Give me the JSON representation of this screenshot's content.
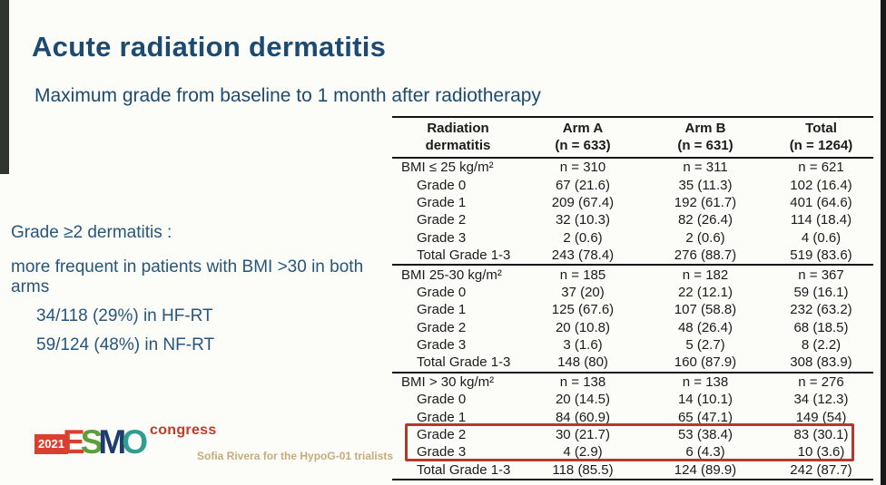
{
  "slide": {
    "title": "Acute radiation dermatitis",
    "subtitle": "Maximum grade from baseline to 1 month after radiotherapy"
  },
  "annotation": {
    "lines": [
      "Grade ≥2 dermatitis :",
      "more frequent in patients with BMI >30 in both arms",
      "34/118 (29%) in HF-RT",
      "59/124 (48%) in NF-RT"
    ]
  },
  "table": {
    "header": {
      "col0": {
        "line1": "Radiation",
        "line2": "dermatitis"
      },
      "col1": {
        "line1": "Arm A",
        "line2": "(n = 633)"
      },
      "col2": {
        "line1": "Arm B",
        "line2": "(n = 631)"
      },
      "col3": {
        "line1": "Total",
        "line2": "(n = 1264)"
      }
    },
    "sections": [
      {
        "label": "BMI ≤ 25 kg/m²",
        "n": [
          "n = 310",
          "n = 311",
          "n = 621"
        ],
        "rows": [
          {
            "label": "Grade 0",
            "cells": [
              "67 (21.6)",
              "35 (11.3)",
              "102 (16.4)"
            ]
          },
          {
            "label": "Grade 1",
            "cells": [
              "209 (67.4)",
              "192 (61.7)",
              "401 (64.6)"
            ]
          },
          {
            "label": "Grade 2",
            "cells": [
              "32 (10.3)",
              "82 (26.4)",
              "114 (18.4)"
            ]
          },
          {
            "label": "Grade 3",
            "cells": [
              "2 (0.6)",
              "2 (0.6)",
              "4 (0.6)"
            ]
          },
          {
            "label": "Total Grade 1-3",
            "cells": [
              "243 (78.4)",
              "276 (88.7)",
              "519 (83.6)"
            ]
          }
        ]
      },
      {
        "label": "BMI 25-30 kg/m²",
        "n": [
          "n = 185",
          "n = 182",
          "n = 367"
        ],
        "rows": [
          {
            "label": "Grade 0",
            "cells": [
              "37 (20)",
              "22 (12.1)",
              "59 (16.1)"
            ]
          },
          {
            "label": "Grade 1",
            "cells": [
              "125 (67.6)",
              "107 (58.8)",
              "232 (63.2)"
            ]
          },
          {
            "label": "Grade 2",
            "cells": [
              "20 (10.8)",
              "48 (26.4)",
              "68 (18.5)"
            ]
          },
          {
            "label": "Grade 3",
            "cells": [
              "3 (1.6)",
              "5 (2.7)",
              "8 (2.2)"
            ]
          },
          {
            "label": "Total Grade 1-3",
            "cells": [
              "148 (80)",
              "160 (87.9)",
              "308 (83.9)"
            ]
          }
        ]
      },
      {
        "label": "BMI > 30 kg/m²",
        "n": [
          "n = 138",
          "n = 138",
          "n = 276"
        ],
        "rows": [
          {
            "label": "Grade 0",
            "cells": [
              "20 (14.5)",
              "14 (10.1)",
              "34 (12.3)"
            ]
          },
          {
            "label": "Grade 1",
            "cells": [
              "84 (60.9)",
              "65 (47.1)",
              "149 (54)"
            ]
          },
          {
            "label": "Grade 2",
            "cells": [
              "30 (21.7)",
              "53 (38.4)",
              "83 (30.1)"
            ],
            "highlight": true
          },
          {
            "label": "Grade 3",
            "cells": [
              "4 (2.9)",
              "6 (4.3)",
              "10 (3.6)"
            ],
            "highlight": true
          },
          {
            "label": "Total Grade 1-3",
            "cells": [
              "118 (85.5)",
              "124 (89.9)",
              "242 (87.7)"
            ]
          }
        ]
      }
    ]
  },
  "footer": {
    "logo": {
      "year": "2021",
      "letters": [
        {
          "ch": "E",
          "color": "#d8402f"
        },
        {
          "ch": "S",
          "color": "#5f9e3a"
        },
        {
          "ch": "M",
          "color": "#1d3e6d"
        },
        {
          "ch": "O",
          "color": "#2f9d92"
        }
      ],
      "congress": "congress"
    },
    "attribution": "Sofia Rivera for the HypoG-01 trialists"
  },
  "colors": {
    "title_blue": "#1d4a70",
    "annotation_blue": "#27567c",
    "highlight_red": "#b23a2b",
    "attribution_tan": "#c8ab79",
    "logo_red": "#d8402f",
    "table_rule": "#121212",
    "background": "#fcfcf9"
  }
}
